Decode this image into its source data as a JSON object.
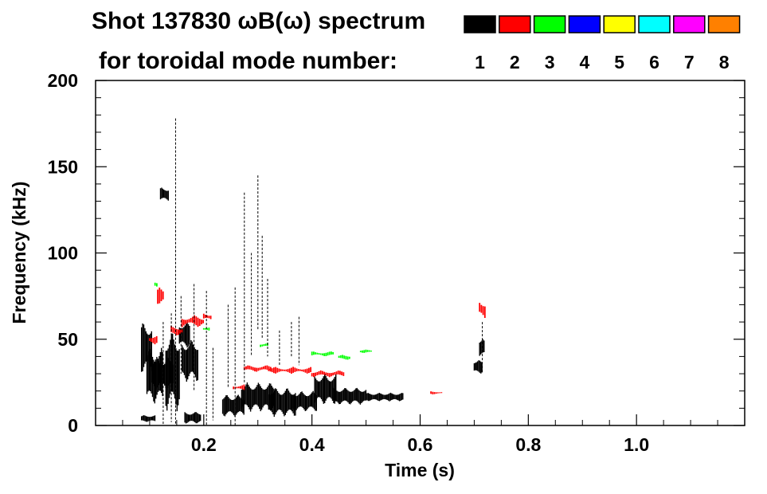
{
  "chart_data": {
    "type": "heatmap",
    "title_line1": "Shot 137830 ωB(ω) spectrum",
    "title_line2": "for toroidal mode number:",
    "xlabel": "Time (s)",
    "ylabel": "Frequency (kHz)",
    "xlim": [
      0.0,
      1.2
    ],
    "ylim": [
      0,
      200
    ],
    "x_ticks": [
      {
        "value": 0.2,
        "label": "0.2"
      },
      {
        "value": 0.4,
        "label": "0.4"
      },
      {
        "value": 0.6,
        "label": "0.6"
      },
      {
        "value": 0.8,
        "label": "0.8"
      },
      {
        "value": 1.0,
        "label": "1.0"
      }
    ],
    "y_ticks": [
      {
        "value": 0,
        "label": "0"
      },
      {
        "value": 50,
        "label": "50"
      },
      {
        "value": 100,
        "label": "100"
      },
      {
        "value": 150,
        "label": "150"
      },
      {
        "value": 200,
        "label": "200"
      }
    ],
    "legend": [
      {
        "mode": "1",
        "color": "#000000"
      },
      {
        "mode": "2",
        "color": "#ff0000"
      },
      {
        "mode": "3",
        "color": "#00ff00"
      },
      {
        "mode": "4",
        "color": "#0000ff"
      },
      {
        "mode": "5",
        "color": "#ffff00"
      },
      {
        "mode": "6",
        "color": "#00ffff"
      },
      {
        "mode": "7",
        "color": "#ff00ff"
      },
      {
        "mode": "8",
        "color": "#ff8000"
      }
    ],
    "patches": [
      {
        "mode": "1",
        "t0": 0.085,
        "t1": 0.105,
        "f0": 30,
        "f1": 60
      },
      {
        "mode": "1",
        "t0": 0.095,
        "t1": 0.125,
        "f0": 12,
        "f1": 45
      },
      {
        "mode": "1",
        "t0": 0.105,
        "t1": 0.145,
        "f0": 20,
        "f1": 40
      },
      {
        "mode": "1",
        "t0": 0.13,
        "t1": 0.155,
        "f0": 8,
        "f1": 55
      },
      {
        "mode": "1",
        "t0": 0.155,
        "t1": 0.175,
        "f0": 45,
        "f1": 60
      },
      {
        "mode": "1",
        "t0": 0.16,
        "t1": 0.19,
        "f0": 25,
        "f1": 50
      },
      {
        "mode": "1",
        "t0": 0.165,
        "t1": 0.195,
        "f0": 1,
        "f1": 8
      },
      {
        "mode": "1",
        "t0": 0.12,
        "t1": 0.135,
        "f0": 130,
        "f1": 138
      },
      {
        "mode": "1",
        "t0": 0.085,
        "t1": 0.11,
        "f0": 2,
        "f1": 6
      },
      {
        "mode": "1",
        "t0": 0.235,
        "t1": 0.275,
        "f0": 5,
        "f1": 18
      },
      {
        "mode": "1",
        "t0": 0.27,
        "t1": 0.33,
        "f0": 8,
        "f1": 25
      },
      {
        "mode": "1",
        "t0": 0.32,
        "t1": 0.37,
        "f0": 5,
        "f1": 22
      },
      {
        "mode": "1",
        "t0": 0.365,
        "t1": 0.41,
        "f0": 8,
        "f1": 20
      },
      {
        "mode": "1",
        "t0": 0.405,
        "t1": 0.445,
        "f0": 12,
        "f1": 30
      },
      {
        "mode": "1",
        "t0": 0.44,
        "t1": 0.5,
        "f0": 12,
        "f1": 22
      },
      {
        "mode": "1",
        "t0": 0.5,
        "t1": 0.57,
        "f0": 14,
        "f1": 19
      },
      {
        "mode": "1",
        "t0": 0.71,
        "t1": 0.72,
        "f0": 40,
        "f1": 50
      },
      {
        "mode": "1",
        "t0": 0.7,
        "t1": 0.715,
        "f0": 30,
        "f1": 38
      },
      {
        "mode": "2",
        "t0": 0.1,
        "t1": 0.115,
        "f0": 47,
        "f1": 53
      },
      {
        "mode": "2",
        "t0": 0.16,
        "t1": 0.2,
        "f0": 57,
        "f1": 64
      },
      {
        "mode": "2",
        "t0": 0.2,
        "t1": 0.215,
        "f0": 60,
        "f1": 66
      },
      {
        "mode": "2",
        "t0": 0.14,
        "t1": 0.16,
        "f0": 52,
        "f1": 58
      },
      {
        "mode": "2",
        "t0": 0.115,
        "t1": 0.125,
        "f0": 70,
        "f1": 80
      },
      {
        "mode": "2",
        "t0": 0.275,
        "t1": 0.325,
        "f0": 31,
        "f1": 35
      },
      {
        "mode": "2",
        "t0": 0.32,
        "t1": 0.4,
        "f0": 30,
        "f1": 34
      },
      {
        "mode": "2",
        "t0": 0.4,
        "t1": 0.46,
        "f0": 28,
        "f1": 32
      },
      {
        "mode": "2",
        "t0": 0.255,
        "t1": 0.275,
        "f0": 20,
        "f1": 24
      },
      {
        "mode": "2",
        "t0": 0.71,
        "t1": 0.72,
        "f0": 60,
        "f1": 75
      },
      {
        "mode": "2",
        "t0": 0.62,
        "t1": 0.64,
        "f0": 18,
        "f1": 20
      },
      {
        "mode": "3",
        "t0": 0.4,
        "t1": 0.44,
        "f0": 40,
        "f1": 43
      },
      {
        "mode": "3",
        "t0": 0.45,
        "t1": 0.47,
        "f0": 38,
        "f1": 41
      },
      {
        "mode": "3",
        "t0": 0.49,
        "t1": 0.51,
        "f0": 42,
        "f1": 44
      },
      {
        "mode": "3",
        "t0": 0.305,
        "t1": 0.32,
        "f0": 45,
        "f1": 48
      },
      {
        "mode": "3",
        "t0": 0.2,
        "t1": 0.21,
        "f0": 54,
        "f1": 58
      },
      {
        "mode": "3",
        "t0": 0.11,
        "t1": 0.115,
        "f0": 80,
        "f1": 84
      }
    ],
    "vertical_lines": [
      {
        "mode": "1",
        "t": 0.148,
        "f0": 0,
        "f1": 178
      },
      {
        "mode": "1",
        "t": 0.125,
        "f0": 0,
        "f1": 60
      },
      {
        "mode": "1",
        "t": 0.14,
        "f0": 2,
        "f1": 65
      },
      {
        "mode": "1",
        "t": 0.158,
        "f0": 30,
        "f1": 75
      },
      {
        "mode": "1",
        "t": 0.182,
        "f0": 20,
        "f1": 82
      },
      {
        "mode": "1",
        "t": 0.205,
        "f0": 0,
        "f1": 78
      },
      {
        "mode": "1",
        "t": 0.217,
        "f0": 3,
        "f1": 45
      },
      {
        "mode": "1",
        "t": 0.245,
        "f0": 22,
        "f1": 70
      },
      {
        "mode": "1",
        "t": 0.258,
        "f0": 0,
        "f1": 80
      },
      {
        "mode": "1",
        "t": 0.275,
        "f0": 25,
        "f1": 135
      },
      {
        "mode": "1",
        "t": 0.288,
        "f0": 40,
        "f1": 100
      },
      {
        "mode": "1",
        "t": 0.3,
        "f0": 55,
        "f1": 145
      },
      {
        "mode": "1",
        "t": 0.308,
        "f0": 50,
        "f1": 110
      },
      {
        "mode": "1",
        "t": 0.318,
        "f0": 40,
        "f1": 85
      },
      {
        "mode": "1",
        "t": 0.34,
        "f0": 35,
        "f1": 55
      },
      {
        "mode": "1",
        "t": 0.362,
        "f0": 40,
        "f1": 60
      },
      {
        "mode": "1",
        "t": 0.376,
        "f0": 35,
        "f1": 63
      },
      {
        "mode": "1",
        "t": 0.715,
        "f0": 30,
        "f1": 60
      }
    ]
  }
}
